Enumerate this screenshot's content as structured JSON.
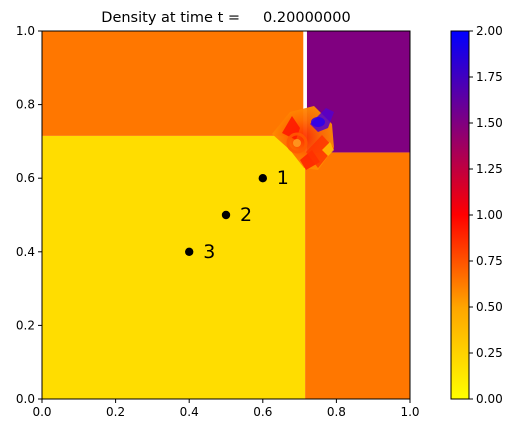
{
  "chart_data": {
    "type": "heatmap",
    "title": "Density at time t =     0.20000000",
    "xlabel": "",
    "ylabel": "",
    "xlim": [
      0,
      1
    ],
    "ylim": [
      0,
      1
    ],
    "xticks": [
      "0.0",
      "0.2",
      "0.4",
      "0.6",
      "0.8",
      "1.0"
    ],
    "yticks": [
      "0.0",
      "0.2",
      "0.4",
      "0.6",
      "0.8",
      "1.0"
    ],
    "grid": false,
    "colorbar": {
      "min": 0.0,
      "max": 2.0,
      "ticks": [
        "0.00",
        "0.25",
        "0.50",
        "0.75",
        "1.00",
        "1.25",
        "1.50",
        "1.75",
        "2.00"
      ],
      "colormap": [
        "#ffff00",
        "#ffa500",
        "#ff0000",
        "#800080",
        "#0000ff"
      ]
    },
    "regions": [
      {
        "name": "bottom-left",
        "x": [
          0.0,
          0.715
        ],
        "y": [
          0.0,
          0.715
        ],
        "density": 0.0,
        "color": "#ffdd00"
      },
      {
        "name": "top-left",
        "x": [
          0.0,
          0.71
        ],
        "y": [
          0.715,
          1.0
        ],
        "density": 0.53,
        "color": "#ff7700"
      },
      {
        "name": "bottom-right",
        "x": [
          0.715,
          1.0
        ],
        "y": [
          0.0,
          0.67
        ],
        "density": 0.53,
        "color": "#ff7700"
      },
      {
        "name": "top-right",
        "x": [
          0.72,
          1.0
        ],
        "y": [
          0.67,
          1.0
        ],
        "density": 1.5,
        "color": "#800080"
      }
    ],
    "points": [
      {
        "label": "1",
        "x": 0.6,
        "y": 0.6
      },
      {
        "label": "2",
        "x": 0.5,
        "y": 0.5
      },
      {
        "label": "3",
        "x": 0.4,
        "y": 0.4
      }
    ]
  }
}
